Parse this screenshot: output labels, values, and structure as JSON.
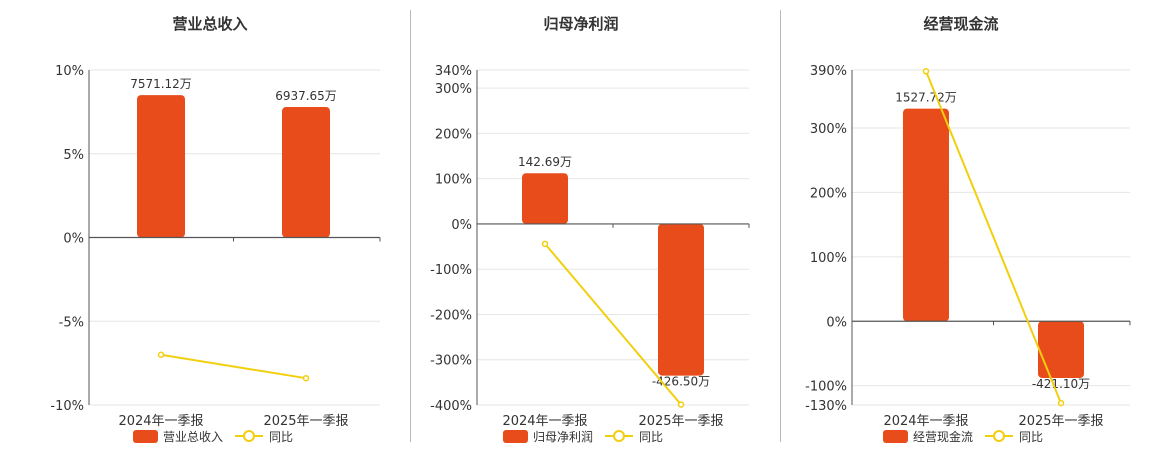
{
  "colors": {
    "bar": "#e84c1b",
    "line": "#f2cf0e",
    "grid": "#e6e6e6",
    "axis": "#555555",
    "text": "#333333"
  },
  "chart_data": [
    {
      "type": "bar",
      "title": "营业总收入",
      "categories": [
        "2024年一季报",
        "2025年一季报"
      ],
      "bar_values": [
        7571.12,
        6937.65
      ],
      "bar_labels": [
        "7571.12万",
        "6937.65万"
      ],
      "yoy": [
        -7.0,
        -8.4
      ],
      "ylim": [
        -10,
        10
      ],
      "yticks": [
        -10,
        -5,
        0,
        5,
        10
      ],
      "ytick_labels": [
        "-10%",
        "-5%",
        "0%",
        "5%",
        "10%"
      ],
      "legend": [
        "营业总收入",
        "同比"
      ]
    },
    {
      "type": "bar",
      "title": "归母净利润",
      "categories": [
        "2024年一季报",
        "2025年一季报"
      ],
      "bar_values": [
        142.69,
        -426.5
      ],
      "bar_labels": [
        "142.69万",
        "-426.50万"
      ],
      "yoy": [
        -44,
        -399
      ],
      "ylim": [
        -400,
        340
      ],
      "yticks": [
        -400,
        -300,
        -200,
        -100,
        0,
        100,
        200,
        300,
        340
      ],
      "ytick_labels": [
        "-400%",
        "-300%",
        "-200%",
        "-100%",
        "0%",
        "100%",
        "200%",
        "300%",
        "340%"
      ],
      "legend": [
        "归母净利润",
        "同比"
      ]
    },
    {
      "type": "bar",
      "title": "经营现金流",
      "categories": [
        "2024年一季报",
        "2025年一季报"
      ],
      "bar_values": [
        1527.72,
        -421.1
      ],
      "bar_labels": [
        "1527.72万",
        "-421.10万"
      ],
      "yoy": [
        388,
        -127
      ],
      "ylim": [
        -130,
        390
      ],
      "yticks": [
        -130,
        -100,
        0,
        100,
        200,
        300,
        390
      ],
      "ytick_labels": [
        "-130%",
        "-100%",
        "0%",
        "100%",
        "200%",
        "300%",
        "390%"
      ],
      "legend": [
        "经营现金流",
        "同比"
      ]
    }
  ]
}
